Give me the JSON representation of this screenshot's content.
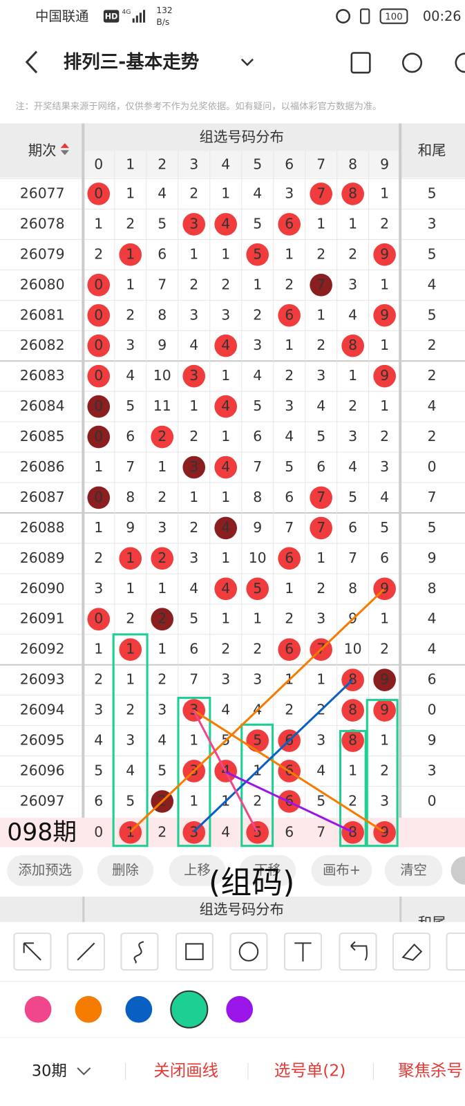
{
  "status_bar": {
    "carrier": "中国联通",
    "hd": "HD",
    "network": "4G",
    "speed": "132",
    "speed_unit": "B/s",
    "battery": "100",
    "time": "00:26"
  },
  "header": {
    "title": "排列三-基本走势"
  },
  "notice": "注：开奖结果来源于网络，仅供参考不作为兑奖依据。如有疑问，以福体彩官方数据为准。",
  "table": {
    "period_header": "期次",
    "group_header": "组选号码分布",
    "tail_header": "和尾",
    "digits": [
      0,
      1,
      2,
      3,
      4,
      5,
      6,
      7,
      8,
      9
    ],
    "rows": [
      {
        "period": "26077",
        "cells": [
          0,
          1,
          4,
          2,
          1,
          4,
          3,
          7,
          8,
          1
        ],
        "tail": 5,
        "red": [
          0,
          7,
          8
        ]
      },
      {
        "period": "26078",
        "cells": [
          1,
          2,
          5,
          3,
          4,
          5,
          6,
          1,
          1,
          2
        ],
        "tail": 3,
        "red": [
          3,
          4,
          6
        ]
      },
      {
        "period": "26079",
        "cells": [
          2,
          1,
          6,
          1,
          1,
          5,
          1,
          2,
          2,
          9
        ],
        "tail": 5,
        "red": [
          1,
          5,
          9
        ]
      },
      {
        "period": "26080",
        "cells": [
          0,
          1,
          7,
          2,
          2,
          1,
          2,
          7,
          3,
          1
        ],
        "tail": 4,
        "red": [
          0
        ],
        "dark": [
          7
        ]
      },
      {
        "period": "26081",
        "cells": [
          0,
          2,
          8,
          3,
          3,
          2,
          6,
          1,
          4,
          9
        ],
        "tail": 5,
        "red": [
          0,
          6,
          9
        ]
      },
      {
        "period": "26082",
        "cells": [
          0,
          3,
          9,
          4,
          4,
          3,
          1,
          2,
          8,
          1
        ],
        "tail": 2,
        "red": [
          0,
          4,
          8
        ]
      },
      {
        "period": "26083",
        "cells": [
          0,
          4,
          10,
          3,
          1,
          4,
          2,
          3,
          1,
          9
        ],
        "tail": 2,
        "red": [
          0,
          3,
          9
        ]
      },
      {
        "period": "26084",
        "cells": [
          0,
          5,
          11,
          1,
          4,
          5,
          3,
          4,
          2,
          1
        ],
        "tail": 4,
        "red": [
          4
        ],
        "dark": [
          0
        ]
      },
      {
        "period": "26085",
        "cells": [
          0,
          6,
          2,
          2,
          1,
          6,
          4,
          5,
          3,
          2
        ],
        "tail": 2,
        "red": [
          2
        ],
        "dark": [
          0
        ]
      },
      {
        "period": "26086",
        "cells": [
          1,
          7,
          1,
          3,
          4,
          7,
          5,
          6,
          4,
          3
        ],
        "tail": 0,
        "red": [
          4
        ],
        "dark": [
          3
        ]
      },
      {
        "period": "26087",
        "cells": [
          0,
          8,
          2,
          1,
          1,
          8,
          6,
          7,
          5,
          4
        ],
        "tail": 7,
        "red": [
          7
        ],
        "dark": [
          0
        ]
      },
      {
        "period": "26088",
        "cells": [
          1,
          9,
          3,
          2,
          4,
          9,
          7,
          7,
          6,
          5
        ],
        "tail": 5,
        "red": [
          7
        ],
        "dark": [
          4
        ]
      },
      {
        "period": "26089",
        "cells": [
          2,
          1,
          2,
          3,
          1,
          10,
          6,
          1,
          7,
          6
        ],
        "tail": 9,
        "red": [
          1,
          2,
          6
        ]
      },
      {
        "period": "26090",
        "cells": [
          3,
          1,
          1,
          4,
          4,
          5,
          1,
          2,
          8,
          9
        ],
        "tail": 8,
        "red": [
          4,
          5,
          9
        ]
      },
      {
        "period": "26091",
        "cells": [
          0,
          2,
          2,
          5,
          1,
          1,
          2,
          3,
          9,
          1
        ],
        "tail": 4,
        "red": [
          0
        ],
        "dark": [
          2
        ]
      },
      {
        "period": "26092",
        "cells": [
          1,
          1,
          1,
          6,
          2,
          2,
          6,
          7,
          10,
          2
        ],
        "tail": 4,
        "red": [
          1,
          6,
          7
        ]
      },
      {
        "period": "26093",
        "cells": [
          2,
          1,
          2,
          7,
          3,
          3,
          1,
          1,
          8,
          9
        ],
        "tail": 6,
        "red": [
          8
        ],
        "dark": [
          9
        ]
      },
      {
        "period": "26094",
        "cells": [
          3,
          2,
          3,
          3,
          4,
          4,
          2,
          2,
          8,
          9
        ],
        "tail": 0,
        "red": [
          3,
          8,
          9
        ]
      },
      {
        "period": "26095",
        "cells": [
          4,
          3,
          4,
          1,
          5,
          5,
          6,
          3,
          8,
          1
        ],
        "tail": 9,
        "red": [
          5,
          6,
          8
        ]
      },
      {
        "period": "26096",
        "cells": [
          5,
          4,
          5,
          3,
          4,
          1,
          6,
          4,
          1,
          2
        ],
        "tail": 3,
        "red": [
          3,
          4,
          6
        ]
      },
      {
        "period": "26097",
        "cells": [
          6,
          5,
          2,
          1,
          1,
          2,
          6,
          5,
          2,
          3
        ],
        "tail": 0,
        "red": [
          6
        ],
        "dark": [
          2
        ]
      }
    ],
    "draft": {
      "label": "098期",
      "cells": [
        0,
        1,
        2,
        3,
        4,
        5,
        6,
        7,
        8,
        9
      ],
      "picked": [
        1,
        3,
        5,
        8,
        9
      ]
    }
  },
  "buttons": [
    "添加预选",
    "删除",
    "上移",
    "下移",
    "画布+",
    "清空"
  ],
  "overlay_text": "(组码)",
  "repeat_header": {
    "group_header": "组选号码分布",
    "tail_header": "和尾"
  },
  "pen_colors": [
    "#f0468c",
    "#f57c00",
    "#0a5fc2",
    "#1ecf93",
    "#9a16e8"
  ],
  "footer": {
    "periods": "30期",
    "actions": [
      "关闭画线",
      "选号单(2)",
      "聚焦杀号"
    ]
  }
}
